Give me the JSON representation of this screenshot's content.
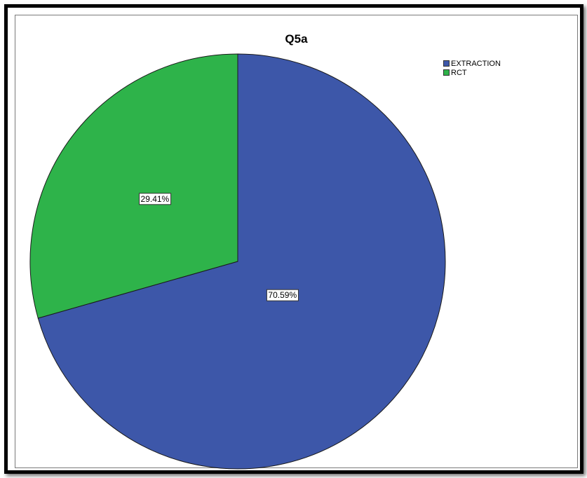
{
  "chart_data": {
    "type": "pie",
    "title": "Q5a",
    "categories": [
      "EXTRACTION",
      "RCT"
    ],
    "values": [
      70.59,
      29.41
    ],
    "data_labels": [
      "70.59%",
      "29.41%"
    ],
    "colors": [
      "#3d57a9",
      "#2eb34a"
    ],
    "start_angle": "12 o'clock",
    "direction": "clockwise",
    "legend_position": "top-right"
  }
}
